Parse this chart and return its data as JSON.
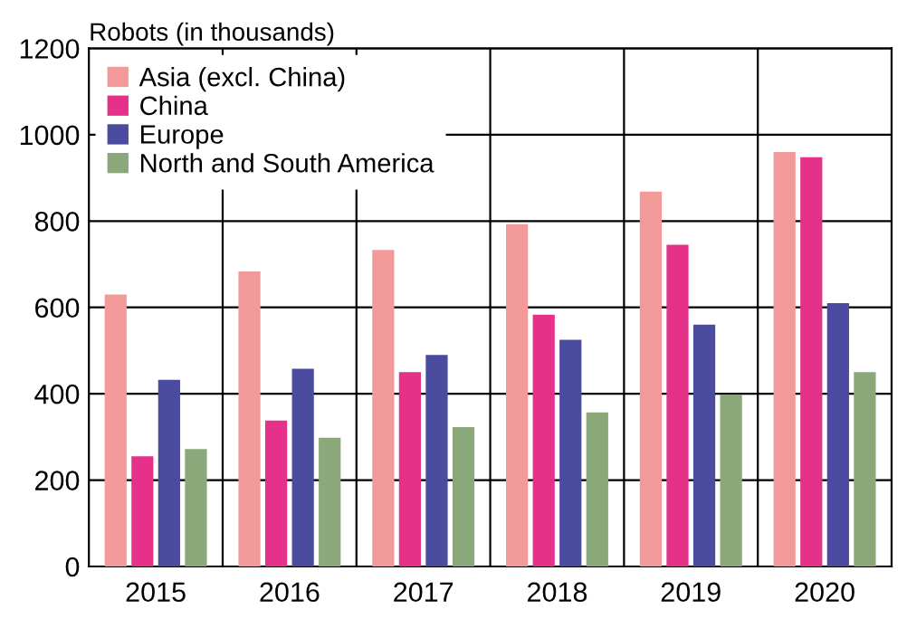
{
  "chart_data": {
    "type": "bar",
    "ylabel": "Robots (in thousands)",
    "categories": [
      "2015",
      "2016",
      "2017",
      "2018",
      "2019",
      "2020"
    ],
    "series": [
      {
        "name": "Asia (excl. China)",
        "color": "#f29a9a",
        "values": [
          630,
          683,
          733,
          793,
          868,
          960
        ]
      },
      {
        "name": "China",
        "color": "#e5318a",
        "values": [
          255,
          338,
          450,
          583,
          745,
          948
        ]
      },
      {
        "name": "Europe",
        "color": "#4b4ca0",
        "values": [
          432,
          458,
          490,
          525,
          560,
          610
        ]
      },
      {
        "name": "North and South America",
        "color": "#8aa87a",
        "values": [
          272,
          298,
          323,
          357,
          398,
          450
        ]
      }
    ],
    "ylim": [
      0,
      1200
    ],
    "yticks": [
      0,
      200,
      400,
      600,
      800,
      1000,
      1200
    ],
    "grid": true,
    "legend": "top left"
  }
}
